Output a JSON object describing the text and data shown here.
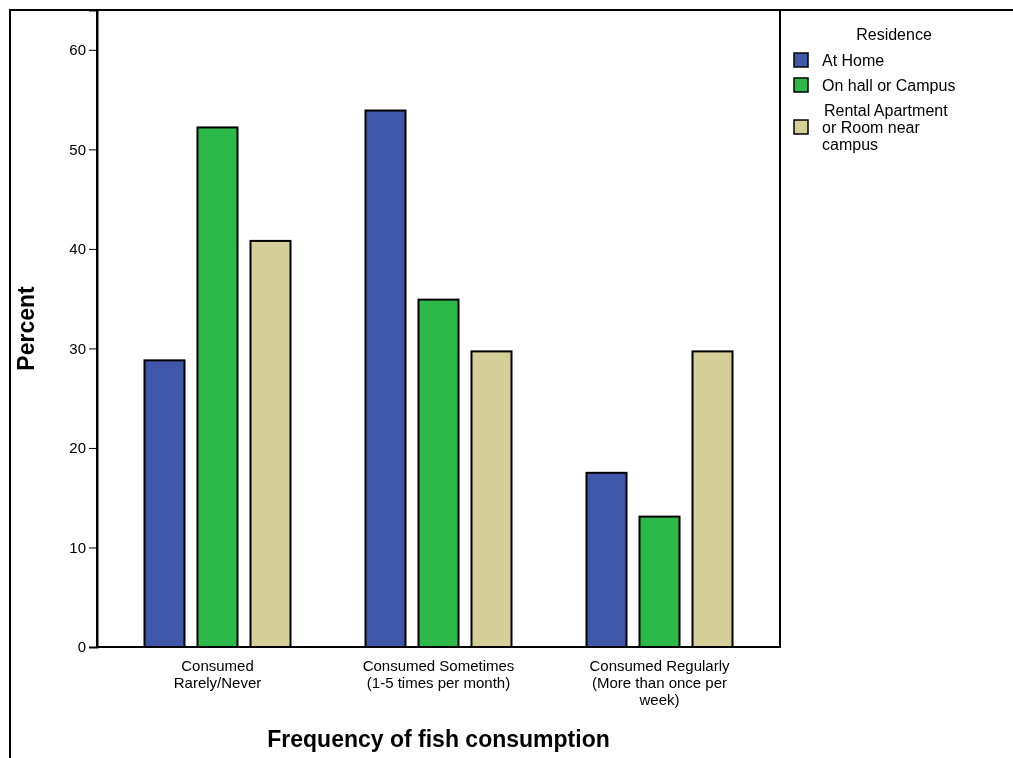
{
  "chart_data": {
    "type": "bar",
    "xlabel": "Frequency of fish consumption",
    "ylabel": "Percent",
    "legend_title": "Residence",
    "legend": "right",
    "categories": [
      "Consumed\nRarely/Never",
      "Consumed Sometimes\n(1-5 times per month)",
      "Consumed Regularly\n(More than once per\nweek)"
    ],
    "series": [
      {
        "name": "At Home",
        "color": "#3f57a8",
        "values": [
          28.8,
          53.9,
          17.5
        ]
      },
      {
        "name": "On hall or Campus",
        "color": "#2db84a",
        "values": [
          52.2,
          34.9,
          13.1
        ]
      },
      {
        "name": "Rental Apartment\nor Room near\ncampus",
        "color": "#d4cf98",
        "values": [
          40.8,
          29.7,
          29.7
        ]
      }
    ],
    "ylim": [
      0,
      64
    ],
    "yticks": [
      0,
      10,
      20,
      30,
      40,
      50,
      60
    ],
    "grid": false
  }
}
